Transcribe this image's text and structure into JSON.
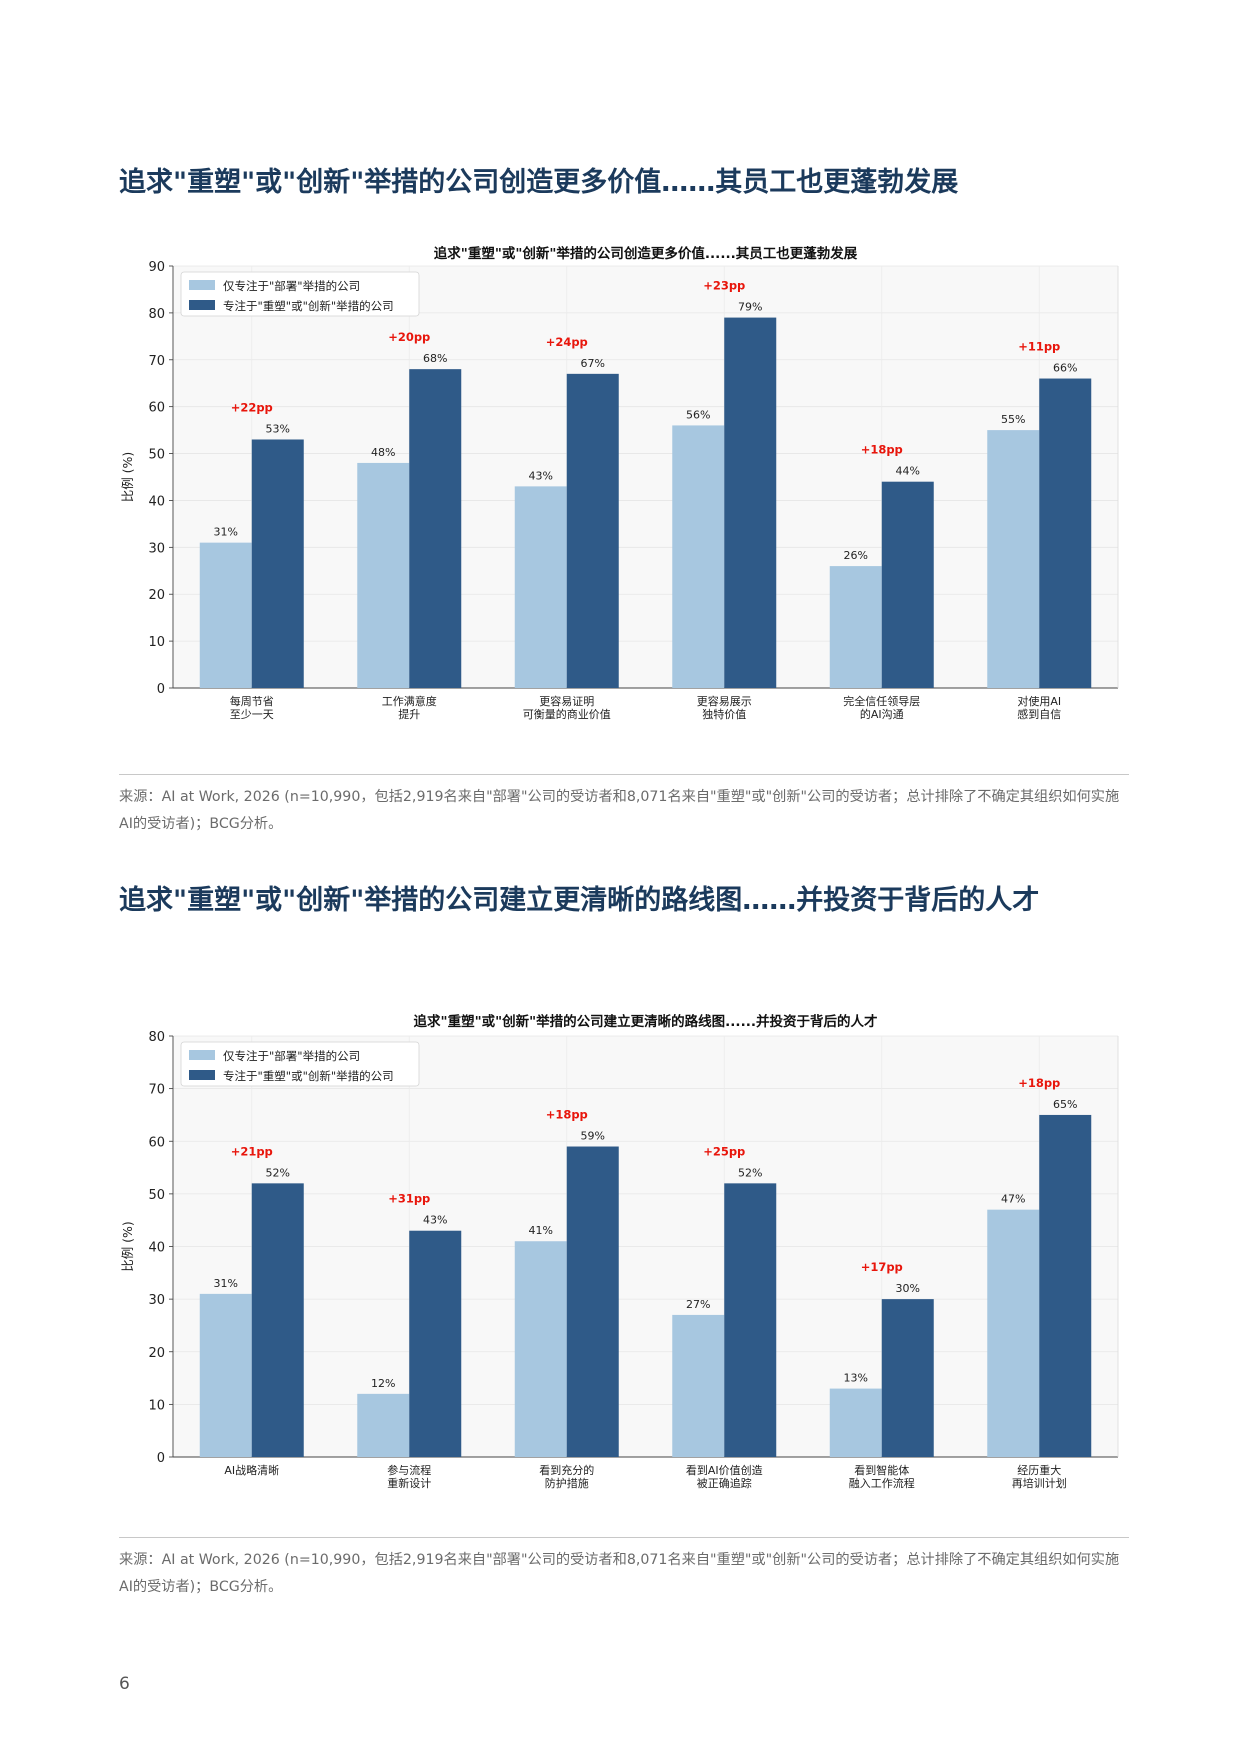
{
  "sections": [
    {
      "heading": "追求\"重塑\"或\"创新\"举措的公司创造更多价值……其员工也更蓬勃发展",
      "source": "来源：AI at Work, 2026 (n=10,990，包括2,919名来自\"部署\"公司的受访者和8,071名来自\"重塑\"或\"创新\"公司的受访者；总计排除了不确定其组织如何实施AI的受访者)；BCG分析。"
    },
    {
      "heading": "追求\"重塑\"或\"创新\"举措的公司建立更清晰的路线图……并投资于背后的人才",
      "source": "来源：AI at Work, 2026 (n=10,990，包括2,919名来自\"部署\"公司的受访者和8,071名来自\"重塑\"或\"创新\"公司的受访者；总计排除了不确定其组织如何实施AI的受访者)；BCG分析。"
    }
  ],
  "page_number": "6",
  "colors": {
    "heading": "#1b3a5c",
    "series_light": "#a7c7e0",
    "series_dark": "#2f5a88",
    "delta": "#e8160c",
    "plot_bg": "#f8f8f8"
  },
  "chart_data": [
    {
      "type": "bar",
      "title": "追求\"重塑\"或\"创新\"举措的公司创造更多价值......其员工也更蓬勃发展",
      "ylabel": "比例 (%)",
      "ylim": [
        0,
        90
      ],
      "yticks": [
        0,
        10,
        20,
        30,
        40,
        50,
        60,
        70,
        80,
        90
      ],
      "grid": true,
      "legend_position": "top-left",
      "categories": [
        [
          "每周节省",
          "至少一天"
        ],
        [
          "工作满意度",
          "提升"
        ],
        [
          "更容易证明",
          "可衡量的商业价值"
        ],
        [
          "更容易展示",
          "独特价值"
        ],
        [
          "完全信任领导层",
          "的AI沟通"
        ],
        [
          "对使用AI",
          "感到自信"
        ]
      ],
      "series": [
        {
          "name": "仅专注于\"部署\"举措的公司",
          "values": [
            31,
            48,
            43,
            56,
            26,
            55
          ]
        },
        {
          "name": "专注于\"重塑\"或\"创新\"举措的公司",
          "values": [
            53,
            68,
            67,
            79,
            44,
            66
          ]
        }
      ],
      "annotations": [
        "+22pp",
        "+20pp",
        "+24pp",
        "+23pp",
        "+18pp",
        "+11pp"
      ]
    },
    {
      "type": "bar",
      "title": "追求\"重塑\"或\"创新\"举措的公司建立更清晰的路线图......并投资于背后的人才",
      "ylabel": "比例 (%)",
      "ylim": [
        0,
        80
      ],
      "yticks": [
        0,
        10,
        20,
        30,
        40,
        50,
        60,
        70,
        80
      ],
      "grid": true,
      "legend_position": "top-left",
      "categories": [
        [
          "AI战略清晰"
        ],
        [
          "参与流程",
          "重新设计"
        ],
        [
          "看到充分的",
          "防护措施"
        ],
        [
          "看到AI价值创造",
          "被正确追踪"
        ],
        [
          "看到智能体",
          "融入工作流程"
        ],
        [
          "经历重大",
          "再培训计划"
        ]
      ],
      "series": [
        {
          "name": "仅专注于\"部署\"举措的公司",
          "values": [
            31,
            12,
            41,
            27,
            13,
            47
          ]
        },
        {
          "name": "专注于\"重塑\"或\"创新\"举措的公司",
          "values": [
            52,
            43,
            59,
            52,
            30,
            65
          ]
        }
      ],
      "annotations": [
        "+21pp",
        "+31pp",
        "+18pp",
        "+25pp",
        "+17pp",
        "+18pp"
      ]
    }
  ]
}
